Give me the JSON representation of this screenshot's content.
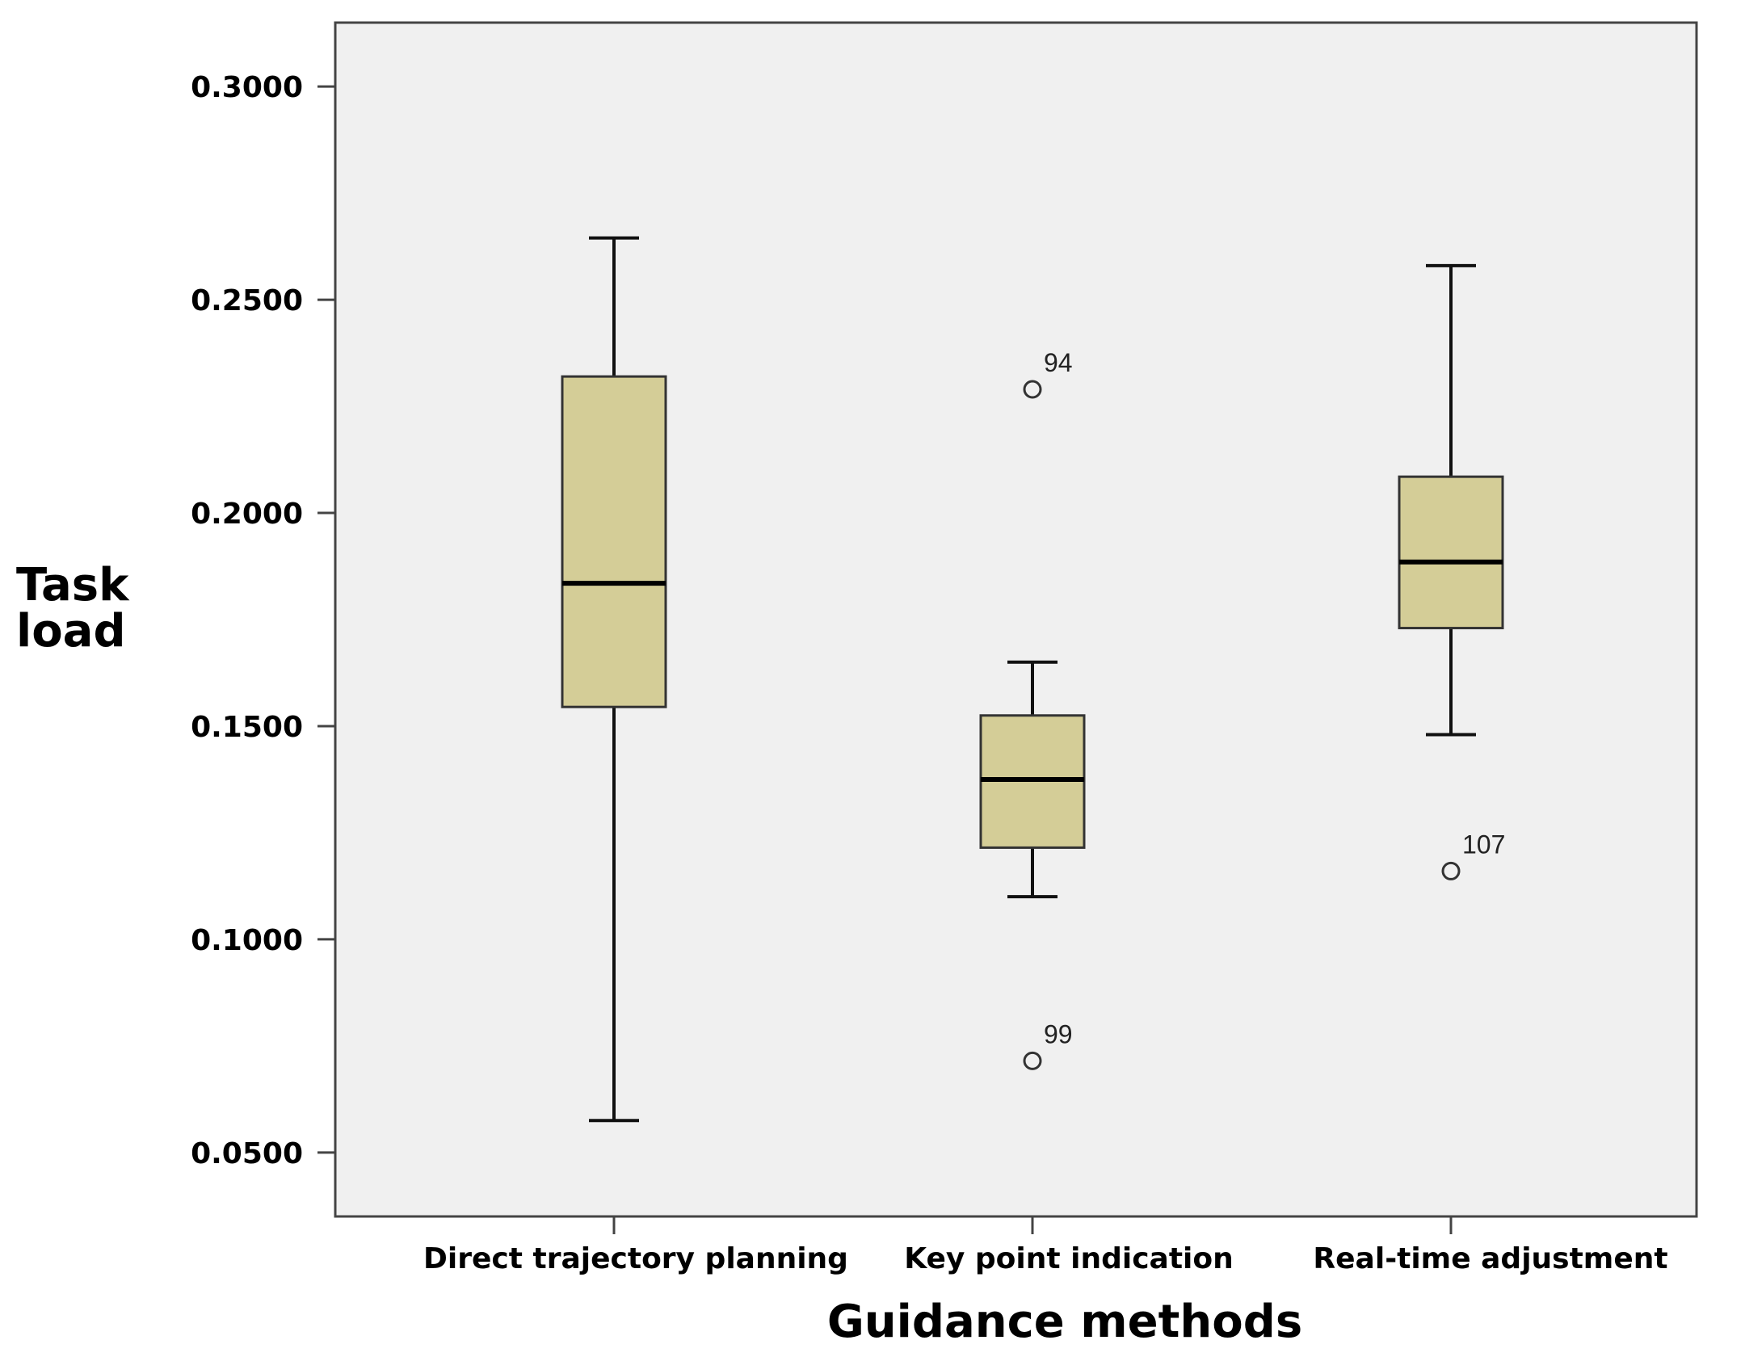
{
  "chart_data": {
    "type": "boxplot",
    "title": "",
    "xlabel": "Guidance methods",
    "ylabel_lines": [
      "Task",
      "load"
    ],
    "ylim": [
      0.035,
      0.315
    ],
    "yticks": [
      0.05,
      0.1,
      0.15,
      0.2,
      0.25,
      0.3
    ],
    "ytick_labels": [
      "0.0500",
      "0.1000",
      "0.1500",
      "0.2000",
      "0.2500",
      "0.3000"
    ],
    "categories": [
      "Direct trajectory planning",
      "Key point indication",
      "Real-time adjustment"
    ],
    "boxes": [
      {
        "name": "Direct trajectory planning",
        "whisker_low": 0.0575,
        "q1": 0.1545,
        "median": 0.1835,
        "q3": 0.232,
        "whisker_high": 0.2645,
        "outliers": []
      },
      {
        "name": "Key point indication",
        "whisker_low": 0.11,
        "q1": 0.1215,
        "median": 0.1375,
        "q3": 0.1525,
        "whisker_high": 0.165,
        "outliers": [
          {
            "label": "94",
            "value": 0.229
          },
          {
            "label": "99",
            "value": 0.0715
          }
        ]
      },
      {
        "name": "Real-time adjustment",
        "whisker_low": 0.148,
        "q1": 0.173,
        "median": 0.1885,
        "q3": 0.2085,
        "whisker_high": 0.258,
        "outliers": [
          {
            "label": "107",
            "value": 0.116
          }
        ]
      }
    ],
    "colors": {
      "plot_background": "#f0f0f0",
      "box_fill": "#d4cd97",
      "box_stroke": "#333333",
      "axis": "#444444"
    }
  }
}
